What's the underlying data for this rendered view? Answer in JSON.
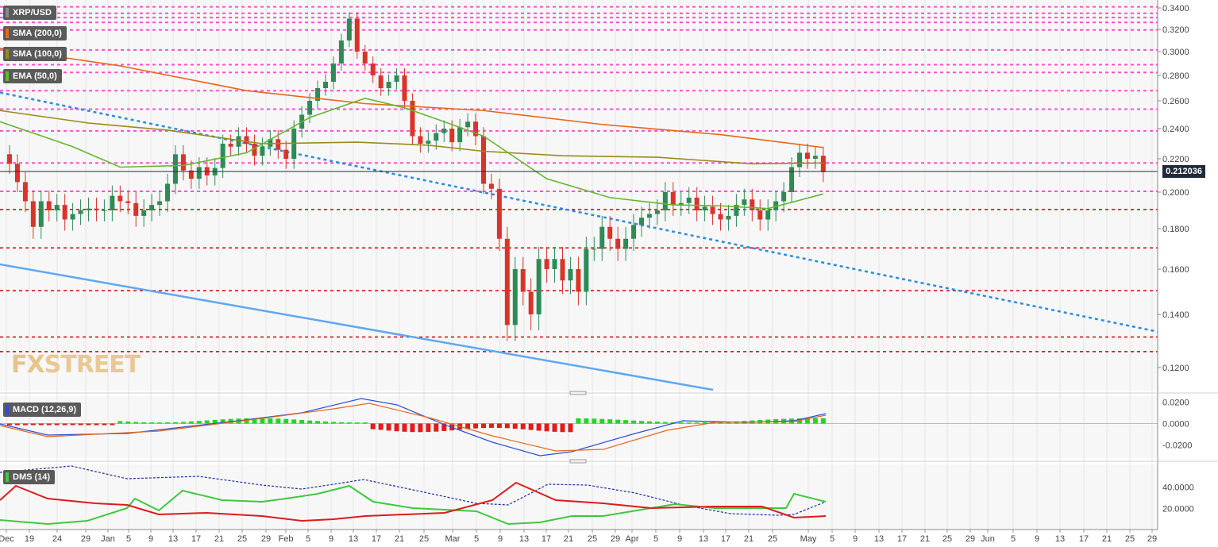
{
  "symbol": "XRP/USD",
  "indicators": {
    "sma200": {
      "label": "SMA (200,0)",
      "color": "#e8671a"
    },
    "sma100": {
      "label": "SMA (100,0)",
      "color": "#9b8a1a"
    },
    "ema50": {
      "label": "EMA (50,0)",
      "color": "#63b82c"
    }
  },
  "macd": {
    "label": "MACD (12,26,9)",
    "color": "#2c4fd6"
  },
  "dms": {
    "label": "DMS (14)",
    "color": "#3ec93e"
  },
  "current_price": "0.212036",
  "logo": {
    "part1": "FX",
    "part2": "STREET"
  },
  "colors": {
    "up": "#2e8b57",
    "down": "#d9342b",
    "pink_level": "#ff4fcf",
    "red_level": "#d40000",
    "trend_dotted": "#2a8ce0",
    "trend_solid": "#5ea8f0"
  },
  "chart_data": [
    {
      "type": "line",
      "title": "XRP/USD",
      "y_ticks": [
        "0.3400",
        "0.3200",
        "0.3000",
        "0.2800",
        "0.2600",
        "0.2400",
        "0.2200",
        "0.2000",
        "0.1800",
        "0.1600",
        "0.1400",
        "0.1200"
      ],
      "x_labels": [
        "Dec",
        "19",
        "24",
        "29",
        "Jan",
        "5",
        "9",
        "13",
        "17",
        "21",
        "25",
        "29",
        "Feb",
        "5",
        "9",
        "13",
        "17",
        "21",
        "25",
        "Mar",
        "5",
        "9",
        "13",
        "17",
        "21",
        "25",
        "29",
        "Apr",
        "5",
        "9",
        "13",
        "17",
        "21",
        "25",
        "May",
        "5",
        "9",
        "13",
        "17",
        "21",
        "25",
        "29",
        "Jun",
        "5",
        "9",
        "13",
        "17",
        "21",
        "25",
        "29"
      ],
      "levels_pink": [
        0.341,
        0.335,
        0.331,
        0.3265,
        0.3195,
        0.3015,
        0.289,
        0.2825,
        0.268,
        0.254,
        0.2385,
        0.2175,
        0.2005
      ],
      "levels_red": [
        0.1905,
        0.1705,
        0.1505,
        0.1315,
        0.126
      ],
      "ylim": [
        0.1105,
        0.3425
      ],
      "series": [
        {
          "name": "SMA (200,0)",
          "x": [
            0,
            14,
            30,
            45,
            60,
            75,
            90,
            103
          ],
          "values": [
            0.303,
            0.288,
            0.268,
            0.258,
            0.253,
            0.243,
            0.236,
            0.2275
          ]
        },
        {
          "name": "SMA (100,0)",
          "x": [
            0,
            10,
            20,
            32,
            44,
            53,
            60,
            70,
            82,
            94,
            103
          ],
          "values": [
            0.253,
            0.244,
            0.239,
            0.23,
            0.231,
            0.229,
            0.225,
            0.222,
            0.221,
            0.217,
            0.2175
          ]
        },
        {
          "name": "EMA (50,0)",
          "x": [
            0,
            8,
            14,
            22,
            30,
            38,
            45,
            50,
            55,
            60,
            68,
            76,
            84,
            90,
            96,
            103
          ],
          "values": [
            0.245,
            0.228,
            0.215,
            0.216,
            0.224,
            0.248,
            0.262,
            0.255,
            0.245,
            0.235,
            0.208,
            0.197,
            0.193,
            0.1925,
            0.191,
            0.199
          ]
        },
        {
          "name": "trendline",
          "x": [
            0,
            150
          ],
          "values": [
            0.2665,
            0.1335
          ]
        },
        {
          "name": "support",
          "x": [
            0,
            89
          ],
          "values": [
            0.1625,
            0.1105
          ]
        }
      ],
      "candles_close": [
        0.217,
        0.206,
        0.195,
        0.181,
        0.195,
        0.19,
        0.193,
        0.185,
        0.188,
        0.19,
        0.191,
        0.19,
        0.19,
        0.198,
        0.195,
        0.194,
        0.187,
        0.19,
        0.193,
        0.195,
        0.205,
        0.223,
        0.213,
        0.208,
        0.215,
        0.21,
        0.2145,
        0.23,
        0.228,
        0.235,
        0.23,
        0.222,
        0.228,
        0.233,
        0.226,
        0.22,
        0.24,
        0.25,
        0.26,
        0.27,
        0.275,
        0.29,
        0.31,
        0.33,
        0.3,
        0.29,
        0.28,
        0.27,
        0.275,
        0.28,
        0.26,
        0.235,
        0.23,
        0.232,
        0.237,
        0.24,
        0.231,
        0.241,
        0.245,
        0.235,
        0.205,
        0.202,
        0.175,
        0.136,
        0.16,
        0.15,
        0.14,
        0.165,
        0.16,
        0.165,
        0.155,
        0.16,
        0.15,
        0.17,
        0.17,
        0.181,
        0.175,
        0.17,
        0.175,
        0.182,
        0.186,
        0.188,
        0.19,
        0.2,
        0.193,
        0.194,
        0.197,
        0.19,
        0.192,
        0.188,
        0.185,
        0.187,
        0.193,
        0.196,
        0.19,
        0.185,
        0.19,
        0.195,
        0.2,
        0.215,
        0.224,
        0.22,
        0.222,
        0.212
      ],
      "macd_ylim": [
        -0.03,
        0.025
      ],
      "macd_ticks": [
        "0.0200",
        "0.0000",
        "-0.0200"
      ],
      "dms_ylim": [
        0,
        60
      ],
      "dms_ticks": [
        "40.0000",
        "20.0000"
      ]
    }
  ]
}
